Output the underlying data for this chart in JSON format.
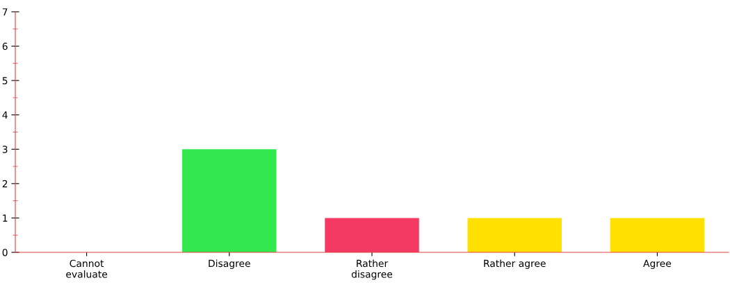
{
  "chart_data": {
    "type": "bar",
    "categories": [
      "Cannot\nevaluate",
      "Disagree",
      "Rather\ndisagree",
      "Rather agree",
      "Agree"
    ],
    "values": [
      0,
      3,
      1,
      1,
      1
    ],
    "colors": [
      "#33e84f",
      "#33e84f",
      "#f43a62",
      "#ffe000",
      "#ffe000"
    ],
    "ylim": [
      0,
      7
    ],
    "yticks": [
      0,
      1,
      2,
      3,
      4,
      5,
      6,
      7
    ],
    "grid": false,
    "legend": false
  }
}
